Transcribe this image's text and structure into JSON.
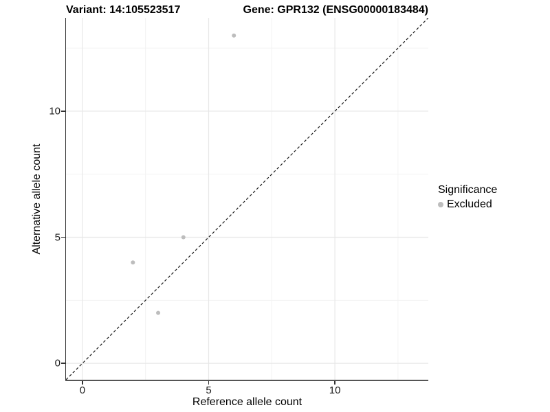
{
  "figure": {
    "title_left": "Variant: 14:105523517",
    "title_right": "Gene: GPR132 (ENSG00000183484)"
  },
  "axes": {
    "x_label": "Reference allele count",
    "y_label": "Alternative allele count"
  },
  "legend": {
    "title": "Significance",
    "entries": [
      {
        "label": "Excluded",
        "color": "#bdbdbd"
      }
    ]
  },
  "chart_data": {
    "type": "scatter",
    "title_left": "Variant: 14:105523517",
    "title_right": "Gene: GPR132 (ENSG00000183484)",
    "xlabel": "Reference allele count",
    "ylabel": "Alternative allele count",
    "xlim": [
      -0.65,
      13.7
    ],
    "ylim": [
      -0.65,
      13.7
    ],
    "x_ticks": [
      0,
      5,
      10
    ],
    "y_ticks": [
      0,
      5,
      10
    ],
    "x_tick_labels": [
      "0",
      "5",
      "10"
    ],
    "y_tick_labels": [
      "0",
      "5",
      "10"
    ],
    "grid": {
      "major": [
        0,
        5,
        10
      ],
      "minor": [
        2.5,
        7.5,
        12.5
      ],
      "on": true
    },
    "series": [
      {
        "name": "Excluded",
        "color": "#bdbdbd",
        "marker_radius": 3,
        "points": [
          [
            2,
            4
          ],
          [
            3,
            2
          ],
          [
            4,
            5
          ],
          [
            6,
            13
          ]
        ]
      }
    ],
    "reference_line": {
      "kind": "identity",
      "equation": "y = x",
      "style": "dashed",
      "color": "#1a1a1a"
    },
    "legend": {
      "title": "Significance",
      "entries": [
        "Excluded"
      ],
      "position": "right"
    },
    "style": {
      "major_grid_color": "#e7e7e7",
      "minor_grid_color": "#f1f1f1",
      "point_color": "#bdbdbd",
      "axis_line_color": "#444444",
      "background": "#ffffff"
    }
  }
}
